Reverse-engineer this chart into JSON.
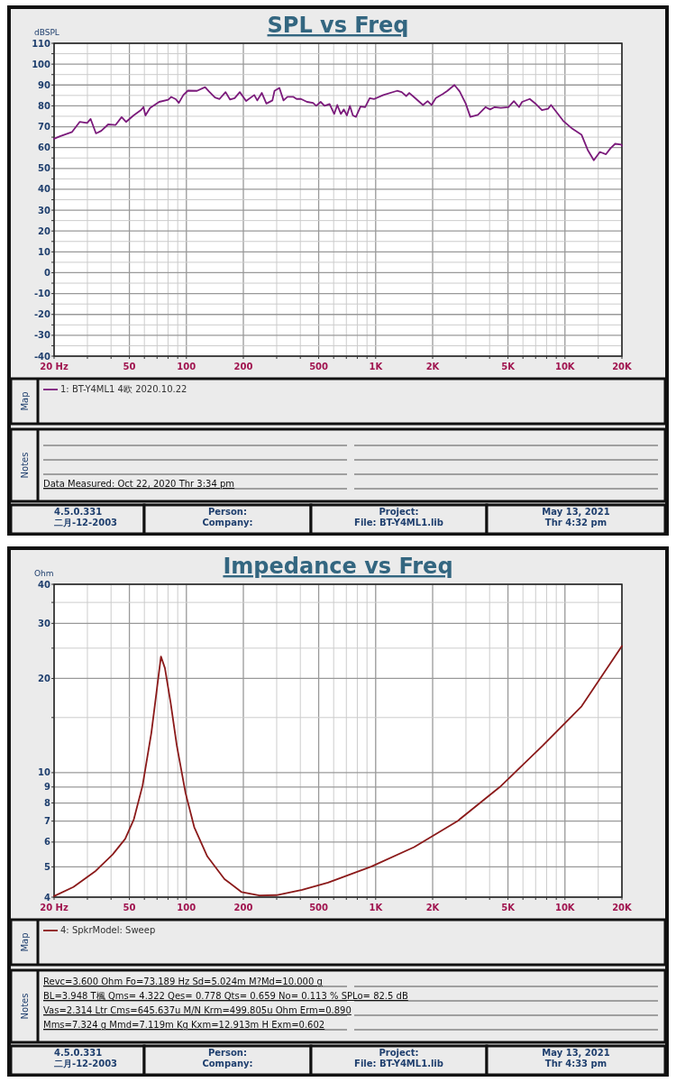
{
  "chart_data": [
    {
      "type": "line",
      "title": "SPL vs Freq",
      "ylabel": "dBSPL",
      "log": "x",
      "grid": true,
      "legend": "bottom",
      "xlim": [
        20,
        20000
      ],
      "ylim": [
        -40,
        110
      ],
      "xticks": [
        {
          "value": 20,
          "label": "20 Hz"
        },
        {
          "value": 30,
          "label": null
        },
        {
          "value": 40,
          "label": null
        },
        50,
        {
          "value": 60,
          "label": null
        },
        {
          "value": 70,
          "label": null
        },
        {
          "value": 80,
          "label": null
        },
        {
          "value": 90,
          "label": null
        },
        100,
        200,
        {
          "value": 300,
          "label": null
        },
        {
          "value": 400,
          "label": null
        },
        500,
        {
          "value": 600,
          "label": null
        },
        {
          "value": 700,
          "label": null
        },
        {
          "value": 800,
          "label": null
        },
        {
          "value": 900,
          "label": null
        },
        {
          "value": 1000,
          "label": "1K"
        },
        {
          "value": 2000,
          "label": "2K"
        },
        {
          "value": 3000,
          "label": null
        },
        {
          "value": 4000,
          "label": null
        },
        {
          "value": 5000,
          "label": "5K"
        },
        {
          "value": 6000,
          "label": null
        },
        {
          "value": 7000,
          "label": null
        },
        {
          "value": 8000,
          "label": null
        },
        {
          "value": 9000,
          "label": null
        },
        {
          "value": 10000,
          "label": "10K"
        },
        {
          "value": 15000,
          "label": null
        },
        {
          "value": 20000,
          "label": "20K"
        }
      ],
      "yticks": [
        -40,
        {
          "value": -35,
          "label": null
        },
        -30,
        {
          "value": -25,
          "label": null
        },
        -20,
        {
          "value": -15,
          "label": null
        },
        -10,
        {
          "value": -5,
          "label": null
        },
        0,
        {
          "value": 5,
          "label": null
        },
        10,
        {
          "value": 15,
          "label": null
        },
        20,
        {
          "value": 25,
          "label": null
        },
        30,
        {
          "value": 35,
          "label": null
        },
        40,
        {
          "value": 45,
          "label": null
        },
        50,
        {
          "value": 55,
          "label": null
        },
        60,
        {
          "value": 65,
          "label": null
        },
        70,
        {
          "value": 75,
          "label": null
        },
        80,
        {
          "value": 85,
          "label": null
        },
        90,
        {
          "value": 95,
          "label": null
        },
        100,
        {
          "value": 105,
          "label": null
        },
        110
      ],
      "series": [
        {
          "name": "1: BT-Y4ML1 4欧 2020.10.22",
          "color": "#7b1a7b",
          "x": [
            20,
            21.5,
            24.9,
            27.3,
            29.9,
            31.2,
            33.3,
            35.5,
            38.6,
            42.2,
            45.5,
            48,
            52.6,
            57.6,
            59.3,
            60.8,
            64.3,
            71.8,
            80.2,
            83.2,
            87.9,
            91.2,
            96.4,
            101.9,
            113.8,
            125.5,
            131.6,
            141.6,
            149.7,
            161.1,
            170.2,
            179.9,
            191.5,
            206.8,
            228.4,
            236.9,
            250.4,
            264.7,
            284.8,
            292.2,
            310,
            326,
            342,
            368,
            382,
            403,
            434,
            467,
            485,
            512,
            537,
            571,
            604,
            627,
            655,
            679,
            705,
            731,
            758,
            787,
            832,
            880,
            930,
            983,
            1098,
            1297,
            1372,
            1450,
            1505,
            1591,
            1779,
            1881,
            1973,
            2078,
            2263,
            2393,
            2607,
            2778,
            2991,
            3163,
            3470,
            3804,
            4023,
            4253,
            4579,
            5026,
            5374,
            5721,
            5939,
            6516,
            7018,
            7558,
            8139,
            8446,
            9097,
            9796,
            10951,
            12245,
            13188,
            14204,
            15298,
            16476,
            17422,
            18422,
            19842,
            20000
          ],
          "values": [
            64.2,
            65.4,
            67.5,
            72.3,
            71.8,
            73.7,
            66.8,
            68,
            71.1,
            70.8,
            74.6,
            72.3,
            75.4,
            78,
            79.4,
            75.4,
            79,
            81.9,
            82.9,
            84.3,
            83.2,
            81.4,
            85.2,
            87.3,
            87.2,
            89,
            86.9,
            84,
            83.3,
            86.6,
            83,
            83.7,
            86.6,
            82.3,
            85.2,
            82.6,
            86.2,
            81.1,
            82.6,
            87.2,
            88.6,
            82.6,
            84.3,
            84.3,
            83.3,
            83.3,
            81.9,
            81.4,
            80,
            81.9,
            80,
            80.9,
            76.1,
            80.4,
            76.1,
            78.3,
            75.4,
            80,
            75.4,
            74.7,
            79.7,
            79.4,
            83.7,
            83.3,
            85.2,
            87.2,
            86.6,
            84.7,
            86.2,
            84.3,
            80.4,
            82.3,
            80.4,
            83.7,
            85.7,
            87.2,
            90,
            86.9,
            81.1,
            74.7,
            75.7,
            79.4,
            78.3,
            79.4,
            79,
            79.4,
            82.3,
            79.4,
            81.9,
            83.3,
            80.9,
            78,
            78.6,
            80.4,
            76.6,
            72.8,
            69,
            66.1,
            58.9,
            53.9,
            57.9,
            56.8,
            59.7,
            61.8,
            61.4,
            60.8
          ]
        }
      ],
      "annotations": [
        "Map",
        "Notes",
        "Data Measured: Oct 22, 2020  Thr  3:34 pm",
        "4.5.0.331",
        "二月-12-2003",
        "Person:",
        "Company:",
        "Project:",
        "File: BT-Y4ML1.lib",
        "May 13, 2021",
        "Thr  4:32 pm"
      ]
    },
    {
      "type": "line",
      "title": "Impedance vs Freq",
      "ylabel": "Ohm",
      "log": "xy",
      "grid": true,
      "legend": "bottom",
      "xlim": [
        20,
        20000
      ],
      "ylim": [
        4,
        40
      ],
      "xticks": [
        {
          "value": 20,
          "label": "20 Hz"
        },
        {
          "value": 30,
          "label": null
        },
        {
          "value": 40,
          "label": null
        },
        50,
        {
          "value": 60,
          "label": null
        },
        {
          "value": 70,
          "label": null
        },
        {
          "value": 80,
          "label": null
        },
        {
          "value": 90,
          "label": null
        },
        100,
        200,
        {
          "value": 300,
          "label": null
        },
        {
          "value": 400,
          "label": null
        },
        500,
        {
          "value": 600,
          "label": null
        },
        {
          "value": 700,
          "label": null
        },
        {
          "value": 800,
          "label": null
        },
        {
          "value": 900,
          "label": null
        },
        {
          "value": 1000,
          "label": "1K"
        },
        {
          "value": 2000,
          "label": "2K"
        },
        {
          "value": 3000,
          "label": null
        },
        {
          "value": 4000,
          "label": null
        },
        {
          "value": 5000,
          "label": "5K"
        },
        {
          "value": 6000,
          "label": null
        },
        {
          "value": 7000,
          "label": null
        },
        {
          "value": 8000,
          "label": null
        },
        {
          "value": 9000,
          "label": null
        },
        {
          "value": 10000,
          "label": "10K"
        },
        {
          "value": 15000,
          "label": null
        },
        {
          "value": 20000,
          "label": "20K"
        }
      ],
      "yticks": [
        4,
        5,
        6,
        7,
        8,
        9,
        10,
        {
          "value": 15,
          "label": null
        },
        20,
        {
          "value": 25,
          "label": null
        },
        30,
        {
          "value": 35,
          "label": null
        },
        40
      ],
      "series": [
        {
          "name": "4: SpkrModel: Sweep",
          "color": "#8b1a1a",
          "x": [
            20,
            25.3,
            32.9,
            40.8,
            47.5,
            52.8,
            58.7,
            65.3,
            69.7,
            73.4,
            77,
            82.6,
            89,
            99,
            110,
            129,
            159,
            196,
            243,
            299,
            409,
            560,
            947,
            1596,
            2688,
            4531,
            7635,
            12247,
            20000
          ],
          "values": [
            4.03,
            4.31,
            4.83,
            5.48,
            6.14,
            7.1,
            9.1,
            13.4,
            18.3,
            23.5,
            21.6,
            16.7,
            12.2,
            8.6,
            6.7,
            5.4,
            4.57,
            4.15,
            4.05,
            4.06,
            4.22,
            4.45,
            5.01,
            5.78,
            6.98,
            9.0,
            12.2,
            16.3,
            25.4
          ]
        }
      ],
      "annotations": [
        "Map",
        "Notes",
        "Revc=3.600 Ohm  Fo=73.189 Hz  Sd=5.024m M?Md=10.000 g",
        "BL=3.948 T楓  Qms= 4.322  Qes= 0.778  Qts= 0.659  No= 0.113 %  SPLo= 82.5 dB",
        "Vas=2.314 Ltr  Cms=645.637u M/N  Krm=499.805u Ohm  Erm=0.890",
        "Mms=7.324 g  Mmd=7.119m Kg  Kxm=12.913m H  Exm=0.602",
        "4.5.0.331",
        "二月-12-2003",
        "Person:",
        "Company:",
        "Project:",
        "File: BT-Y4ML1.lib",
        "May 13, 2021",
        "Thr  4:33 pm"
      ]
    }
  ]
}
